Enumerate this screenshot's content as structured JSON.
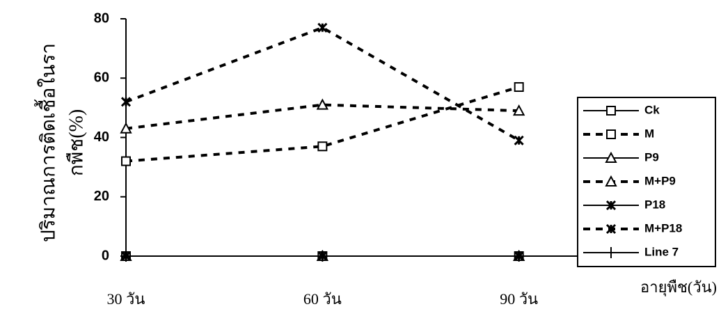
{
  "chart_data": {
    "type": "line",
    "y_label": [
      "ปริมาณการติดเชื้อในรา",
      "กพืช(%)"
    ],
    "x_label": "อายุพืช(วัน)",
    "categories": [
      "30 วัน",
      "60 วัน",
      "90 วัน"
    ],
    "ylim": [
      0,
      80
    ],
    "yticks": [
      0,
      20,
      40,
      60,
      80
    ],
    "series": [
      {
        "name": "Ck",
        "color": "#000000",
        "line_style": "solid",
        "marker": "square",
        "values": [
          0,
          0,
          0
        ]
      },
      {
        "name": "M",
        "color": "#000000",
        "line_style": "dashed",
        "marker": "square",
        "values": [
          32,
          37,
          57
        ]
      },
      {
        "name": "P9",
        "color": "#000000",
        "line_style": "solid",
        "marker": "triangle",
        "values": [
          0,
          0,
          0
        ]
      },
      {
        "name": "M+P9",
        "color": "#000000",
        "line_style": "dashed",
        "marker": "triangle",
        "values": [
          43,
          51,
          49
        ]
      },
      {
        "name": "P18",
        "color": "#000000",
        "line_style": "solid",
        "marker": "star",
        "values": [
          0,
          0,
          0
        ]
      },
      {
        "name": "M+P18",
        "color": "#000000",
        "line_style": "dashed",
        "marker": "star",
        "values": [
          52,
          77,
          39
        ]
      },
      {
        "name": "Line 7",
        "color": "#000000",
        "line_style": "solid",
        "marker": "plus",
        "values": [
          0,
          0,
          0
        ]
      }
    ]
  }
}
